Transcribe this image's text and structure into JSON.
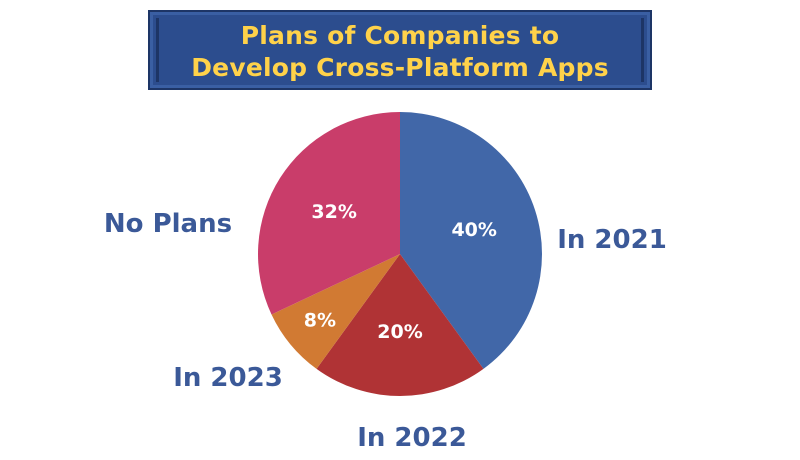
{
  "title": {
    "line1": "Plans of Companies to",
    "line2": "Develop Cross-Platform Apps"
  },
  "colors": {
    "banner_bg": "#2c4d8e",
    "title_text": "#ffd24a",
    "label_text": "#3b5998",
    "pct_text": "#ffffff"
  },
  "chart_data": {
    "type": "pie",
    "title": "Plans of Companies to Develop Cross-Platform Apps",
    "start_angle_deg": 0,
    "direction": "clockwise",
    "slices": [
      {
        "label": "In 2021",
        "value": 40,
        "display": "40%",
        "color": "#4167a8"
      },
      {
        "label": "In 2022",
        "value": 20,
        "display": "20%",
        "color": "#b03335"
      },
      {
        "label": "In 2023",
        "value": 8,
        "display": "8%",
        "color": "#d17a33"
      },
      {
        "label": "No Plans",
        "value": 32,
        "display": "32%",
        "color": "#c93d6a"
      }
    ]
  }
}
